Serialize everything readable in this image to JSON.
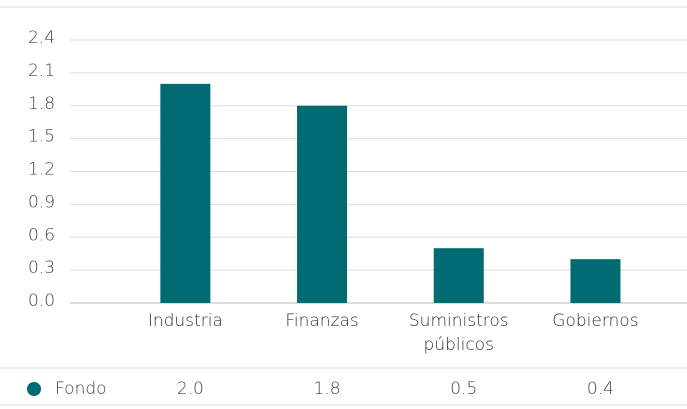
{
  "chart_data": {
    "type": "bar",
    "categories": [
      "Industria",
      "Finanzas",
      "Suministros públicos",
      "Gobiernos"
    ],
    "series": [
      {
        "name": "Fondo",
        "color": "#006b73",
        "values": [
          2.0,
          1.8,
          0.5,
          0.4
        ],
        "value_labels": [
          "2.0",
          "1.8",
          "0.5",
          "0.4"
        ]
      }
    ],
    "ylim": [
      0,
      2.4
    ],
    "yticks": [
      {
        "value": 0,
        "label": "0.0"
      },
      0.3,
      0.6,
      0.9,
      1.2,
      1.5,
      1.8,
      2.1,
      2.4
    ],
    "grid": true
  }
}
